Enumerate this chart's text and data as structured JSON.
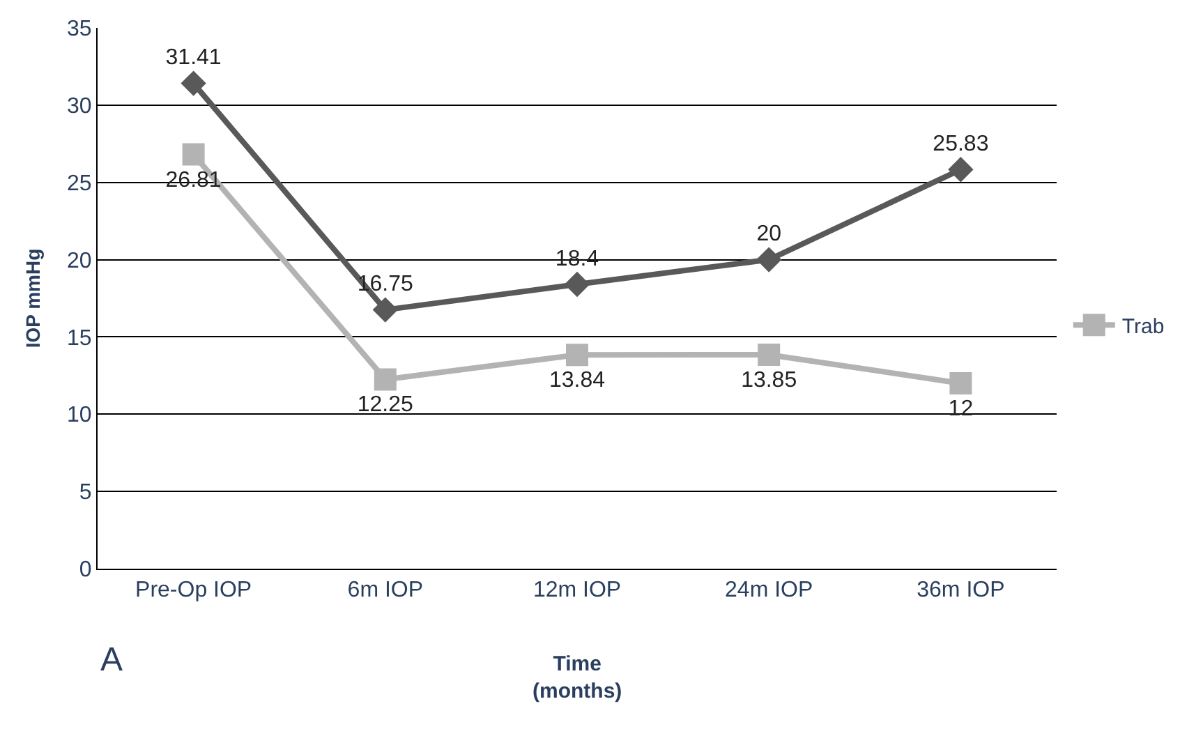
{
  "chart_data": {
    "type": "line",
    "xlabel": "Time\n(months)",
    "ylabel": "IOP mmHg",
    "categories": [
      "Pre-Op IOP",
      "6m IOP",
      "12m IOP",
      "24m IOP",
      "36m IOP"
    ],
    "series": [
      {
        "color": "#595959",
        "marker": "diamond",
        "values": [
          31.41,
          16.75,
          18.4,
          20,
          25.83
        ]
      },
      {
        "name": "Trab",
        "color": "#b3b3b3",
        "marker": "square",
        "values": [
          26.81,
          12.25,
          13.84,
          13.85,
          12
        ]
      }
    ],
    "ylim": [
      0,
      35
    ],
    "yticks": [
      0,
      5,
      10,
      15,
      20,
      25,
      30,
      35
    ],
    "grid": "y",
    "legend": "right",
    "data_labels": true,
    "annotations": [
      "A"
    ]
  }
}
